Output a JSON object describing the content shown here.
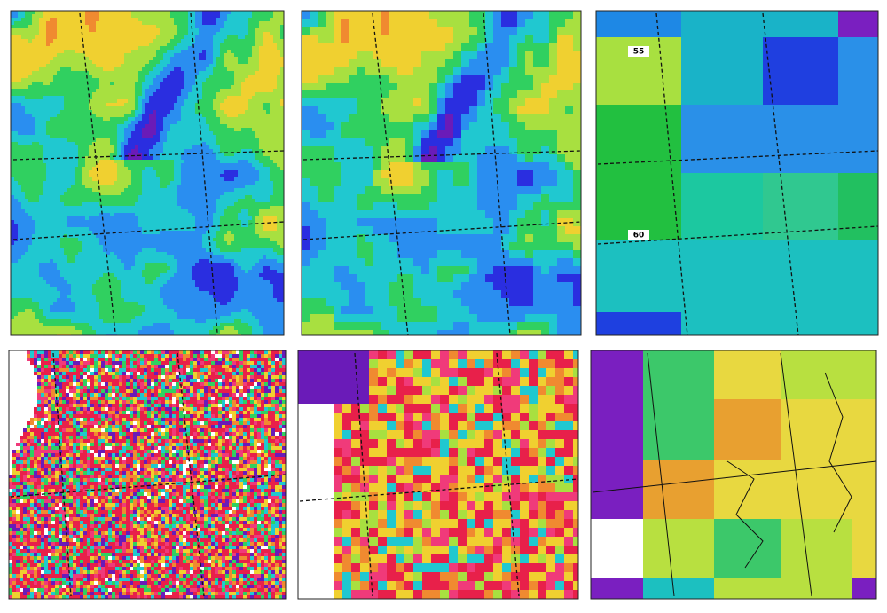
{
  "panels": [
    {
      "labels": [
        "55",
        "60"
      ]
    }
  ]
}
